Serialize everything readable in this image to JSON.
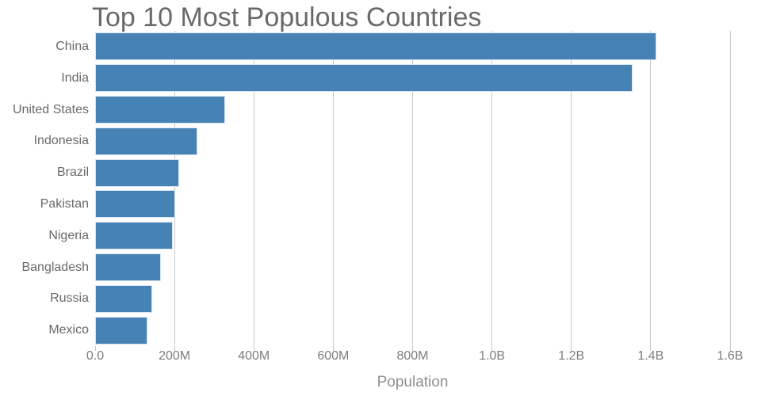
{
  "colors": {
    "bar": "#4682B4",
    "bar_edge": "#d6e4f2",
    "grid": "#c9c9c9",
    "title_text": "#696969",
    "category_text": "#696969",
    "tick_text": "#7d7d7d",
    "axis_label_text": "#8f8f8f"
  },
  "chart_data": {
    "type": "bar",
    "orientation": "horizontal",
    "title": "Top 10 Most Populous Countries",
    "xlabel": "Population",
    "ylabel": "",
    "categories": [
      "China",
      "India",
      "United States",
      "Indonesia",
      "Brazil",
      "Pakistan",
      "Nigeria",
      "Bangladesh",
      "Russia",
      "Mexico"
    ],
    "values_millions": [
      1415,
      1354,
      327,
      257,
      211,
      201,
      196,
      166,
      144,
      131
    ],
    "xlim_millions": [
      0,
      1600
    ],
    "x_ticks": [
      {
        "value": 0,
        "label": "0.0"
      },
      {
        "value": 200,
        "label": "200M"
      },
      {
        "value": 400,
        "label": "400M"
      },
      {
        "value": 600,
        "label": "600M"
      },
      {
        "value": 800,
        "label": "800M"
      },
      {
        "value": 1000,
        "label": "1.0B"
      },
      {
        "value": 1200,
        "label": "1.2B"
      },
      {
        "value": 1400,
        "label": "1.4B"
      },
      {
        "value": 1600,
        "label": "1.6B"
      }
    ],
    "grid": "vertical-major",
    "legend": "none"
  }
}
